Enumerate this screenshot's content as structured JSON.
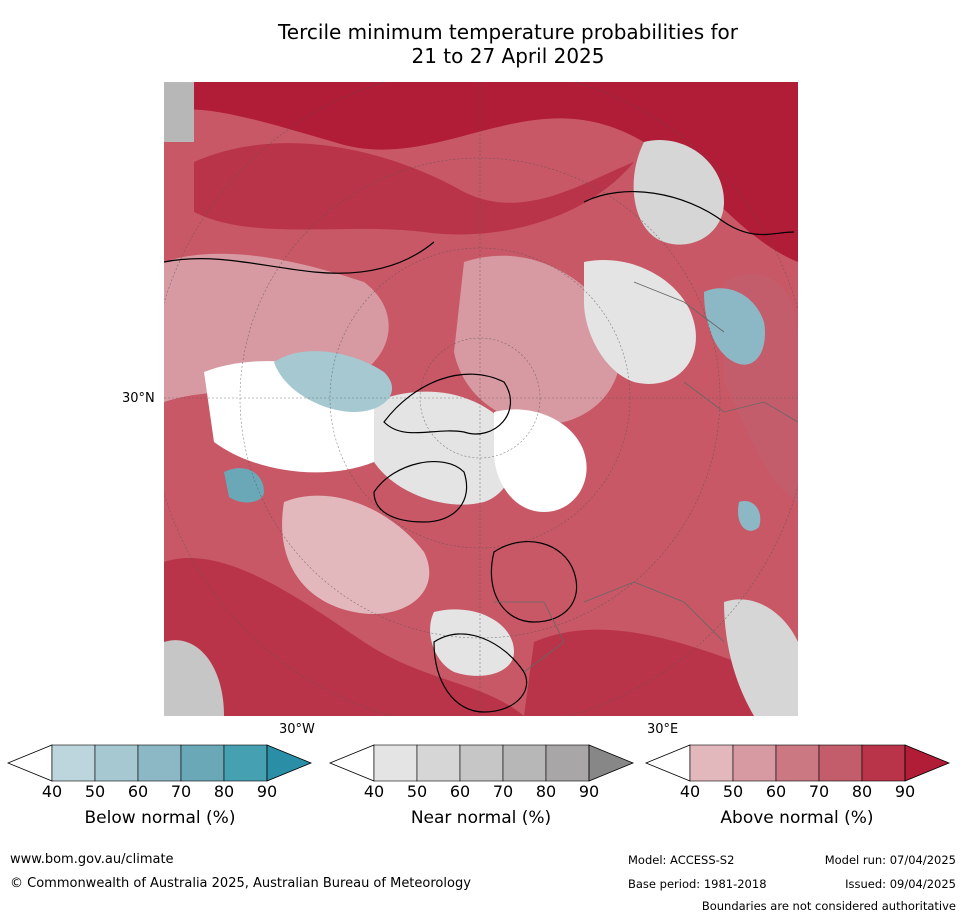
{
  "title": {
    "line1": "Tercile minimum temperature probabilities for",
    "line2": "21 to 27 April 2025"
  },
  "map": {
    "lat_label": "30°N",
    "lon_label_left": "30°W",
    "lon_label_right": "30°E"
  },
  "colorbars": [
    {
      "title": "Below normal (%)",
      "ticks": [
        "40",
        "50",
        "60",
        "70",
        "80",
        "90"
      ],
      "colors": [
        "#bdd6dd",
        "#a5c8d1",
        "#8cb8c6",
        "#6aa8b8",
        "#45a0b2",
        "#2a8fa6"
      ]
    },
    {
      "title": "Near normal (%)",
      "ticks": [
        "40",
        "50",
        "60",
        "70",
        "80",
        "90"
      ],
      "colors": [
        "#e4e4e4",
        "#d6d6d6",
        "#c6c6c6",
        "#b7b7b7",
        "#a8a6a6",
        "#878787"
      ]
    },
    {
      "title": "Above normal (%)",
      "ticks": [
        "40",
        "50",
        "60",
        "70",
        "80",
        "90"
      ],
      "colors": [
        "#e2b8bd",
        "#d79aa2",
        "#cb7883",
        "#c45d6b",
        "#b93449",
        "#b11c37"
      ]
    }
  ],
  "footer": {
    "url": "www.bom.gov.au/climate",
    "copyright": "© Commonwealth of Australia 2025, Australian Bureau of Meteorology",
    "model": "Model: ACCESS-S2",
    "base_period": "Base period: 1981-2018",
    "model_run": "Model run: 07/04/2025",
    "issued": "Issued: 09/04/2025",
    "disclaimer": "Boundaries are not considered authoritative"
  }
}
